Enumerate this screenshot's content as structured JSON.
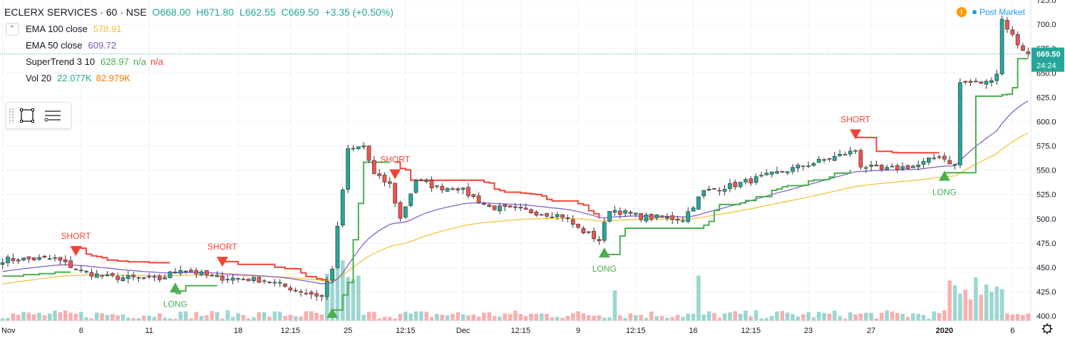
{
  "header": {
    "symbol": "ECLERX SERVICES · 60 · NSE",
    "open": "O668.00",
    "high": "H671.80",
    "low": "L662.55",
    "close": "C669.50",
    "change": "+3.35 (+0.50%)"
  },
  "indicators": [
    {
      "label": "EMA 100 close",
      "value": "578.91",
      "value2": "",
      "value3": "",
      "color": "#f2c12e"
    },
    {
      "label": "EMA 50 close",
      "value": "609.72",
      "value2": "",
      "value3": "",
      "color": "#7e57c2"
    },
    {
      "label": "SuperTrend 3 10",
      "value": "628.97",
      "value2": "n/a",
      "value3": "n/a",
      "color": "#4caf50",
      "color2": "#4caf50",
      "color3": "#f44336"
    },
    {
      "label": "Vol 20",
      "value": "22.077K",
      "value2": "82.979K",
      "value3": "",
      "color": "#26a69a",
      "color2": "#f57c00"
    }
  ],
  "status": {
    "market": "Post Market",
    "warning": "!"
  },
  "price_tag": {
    "value": "669.50",
    "countdown": "24:24"
  },
  "icons": [
    "chevron-down-icon",
    "rectangle-tool-icon",
    "list-settings-icon",
    "gear-icon"
  ],
  "chart_data": {
    "type": "candlestick",
    "ylim": [
      395,
      725
    ],
    "y_ticks": [
      400,
      425,
      450,
      475,
      500,
      525,
      550,
      575,
      600,
      625,
      650,
      675,
      700,
      725
    ],
    "x_tick_labels": [
      {
        "label": "Nov",
        "bar": 0
      },
      {
        "label": "6",
        "bar": 15
      },
      {
        "label": "11",
        "bar": 28
      },
      {
        "label": "18",
        "bar": 45
      },
      {
        "label": "12:15",
        "bar": 55
      },
      {
        "label": "25",
        "bar": 66
      },
      {
        "label": "12:15",
        "bar": 77
      },
      {
        "label": "Dec",
        "bar": 88
      },
      {
        "label": "12:15",
        "bar": 99
      },
      {
        "label": "9",
        "bar": 110
      },
      {
        "label": "12:15",
        "bar": 121
      },
      {
        "label": "16",
        "bar": 132
      },
      {
        "label": "12:15",
        "bar": 143
      },
      {
        "label": "23",
        "bar": 154
      },
      {
        "label": "27",
        "bar": 166
      },
      {
        "label": "2020",
        "bar": 180
      },
      {
        "label": "6",
        "bar": 193
      }
    ],
    "anchors": [
      [
        0,
        458
      ],
      [
        10,
        459
      ],
      [
        15,
        446
      ],
      [
        20,
        440
      ],
      [
        30,
        438
      ],
      [
        34,
        449
      ],
      [
        40,
        440
      ],
      [
        50,
        437
      ],
      [
        56,
        427
      ],
      [
        61,
        420
      ],
      [
        63,
        450
      ],
      [
        66,
        570
      ],
      [
        69,
        575
      ],
      [
        71,
        545
      ],
      [
        74,
        535
      ],
      [
        76,
        500
      ],
      [
        79,
        540
      ],
      [
        83,
        532
      ],
      [
        87,
        532
      ],
      [
        93,
        512
      ],
      [
        100,
        508
      ],
      [
        107,
        503
      ],
      [
        110,
        490
      ],
      [
        114,
        478
      ],
      [
        116,
        510
      ],
      [
        122,
        502
      ],
      [
        130,
        500
      ],
      [
        134,
        528
      ],
      [
        140,
        535
      ],
      [
        150,
        550
      ],
      [
        160,
        565
      ],
      [
        163,
        570
      ],
      [
        164,
        555
      ],
      [
        168,
        550
      ],
      [
        175,
        555
      ],
      [
        179,
        565
      ],
      [
        182,
        555
      ],
      [
        183,
        640
      ],
      [
        188,
        640
      ],
      [
        190,
        650
      ],
      [
        191,
        705
      ],
      [
        194,
        680
      ],
      [
        196,
        669.5
      ]
    ],
    "bar_count": 197,
    "ema_100": {
      "name": "EMA 100 close",
      "last": 578.91,
      "color": "#f2c12e"
    },
    "ema_50": {
      "name": "EMA 50 close",
      "last": 609.72,
      "color": "#7e57c2"
    },
    "supertrend": {
      "name": "SuperTrend 3 10",
      "last": 628.97,
      "segments": [
        {
          "dir": "down",
          "color": "#f44336",
          "points": [
            [
              -1,
              0
            ]
          ]
        }
      ],
      "signals": [
        {
          "type": "SHORT",
          "bar": 14,
          "price": 466,
          "color": "#f44336"
        },
        {
          "type": "LONG",
          "bar": 33,
          "price": 430,
          "color": "#4caf50"
        },
        {
          "type": "SHORT",
          "bar": 42,
          "price": 455,
          "color": "#f44336"
        },
        {
          "type": "LONG",
          "bar": 63,
          "price": 404,
          "color": "#4caf50"
        },
        {
          "type": "SHORT",
          "bar": 75,
          "price": 545,
          "color": "#f44336"
        },
        {
          "type": "LONG",
          "bar": 115,
          "price": 466,
          "color": "#4caf50"
        },
        {
          "type": "SHORT",
          "bar": 163,
          "price": 586,
          "color": "#f44336"
        },
        {
          "type": "LONG",
          "bar": 180,
          "price": 545,
          "color": "#4caf50"
        }
      ]
    },
    "volume": {
      "name": "Vol 20",
      "value": "22.077K",
      "ma": "82.979K",
      "up_color": "#26a69a",
      "down_color": "#ef5350"
    },
    "last_price": 669.5,
    "colors": {
      "up": "#26a69a",
      "down": "#ef5350",
      "grid": "#f0f3fa",
      "axis_text": "#131722"
    }
  }
}
